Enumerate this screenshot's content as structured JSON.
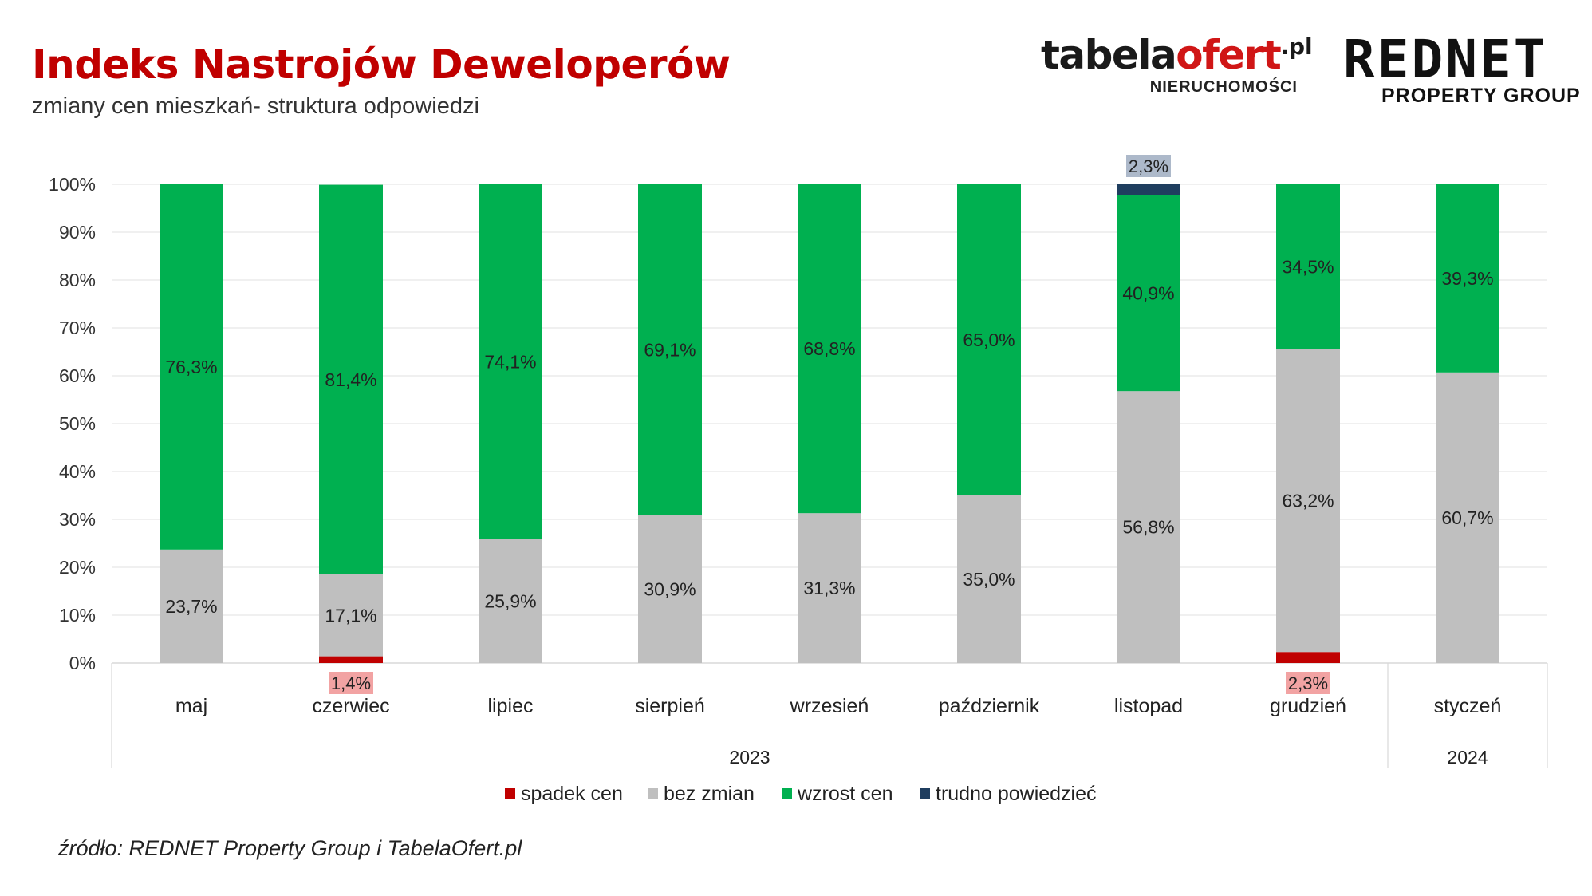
{
  "header": {
    "title": "Indeks Nastrojów Deweloperów",
    "subtitle": "zmiany cen mieszkań- struktura odpowiedzi"
  },
  "logos": {
    "tabela": {
      "name_prefix": "tabela",
      "name_accent": "ofert",
      "tld": ".pl",
      "sub": "NIERUCHOMOŚCI"
    },
    "rednet": {
      "name": "REDNET",
      "sub": "PROPERTY GROUP"
    }
  },
  "footer": {
    "source": "źródło: REDNET Property Group i TabelaOfert.pl"
  },
  "chart_data": {
    "type": "bar",
    "stacked": true,
    "title": "Indeks Nastrojów Deweloperów",
    "ylim": [
      0,
      100
    ],
    "yticks": [
      0,
      10,
      20,
      30,
      40,
      50,
      60,
      70,
      80,
      90,
      100
    ],
    "categories": [
      "maj",
      "czerwiec",
      "lipiec",
      "sierpień",
      "wrzesień",
      "październik",
      "listopad",
      "grudzień",
      "styczeń"
    ],
    "year_groups": [
      {
        "label": "2023",
        "count": 8
      },
      {
        "label": "2024",
        "count": 1
      }
    ],
    "legend_position": "bottom",
    "series": [
      {
        "name": "spadek cen",
        "color": "#c00000",
        "label_bg": "#f2a3a3",
        "values": [
          0,
          1.4,
          0,
          0,
          0,
          0,
          0,
          2.3,
          0
        ],
        "labels": [
          "",
          "1,4%",
          "",
          "",
          "",
          "",
          "",
          "2,3%",
          ""
        ]
      },
      {
        "name": "bez zmian",
        "color": "#bfbfbf",
        "values": [
          23.7,
          17.1,
          25.9,
          30.9,
          31.3,
          35.0,
          56.8,
          63.2,
          60.7
        ],
        "labels": [
          "23,7%",
          "17,1%",
          "25,9%",
          "30,9%",
          "31,3%",
          "35,0%",
          "56,8%",
          "63,2%",
          "60,7%"
        ]
      },
      {
        "name": "wzrost cen",
        "color": "#00b050",
        "values": [
          76.3,
          81.4,
          74.1,
          69.1,
          68.8,
          65.0,
          40.9,
          34.5,
          39.3
        ],
        "labels": [
          "76,3%",
          "81,4%",
          "74,1%",
          "69,1%",
          "68,8%",
          "65,0%",
          "40,9%",
          "34,5%",
          "39,3%"
        ]
      },
      {
        "name": "trudno powiedzieć",
        "color": "#1f3e5f",
        "label_bg": "#adb9ca",
        "values": [
          0,
          0,
          0,
          0,
          0,
          0,
          2.3,
          0,
          0
        ],
        "labels": [
          "",
          "",
          "",
          "",
          "",
          "",
          "2,3%",
          "",
          ""
        ]
      }
    ]
  }
}
